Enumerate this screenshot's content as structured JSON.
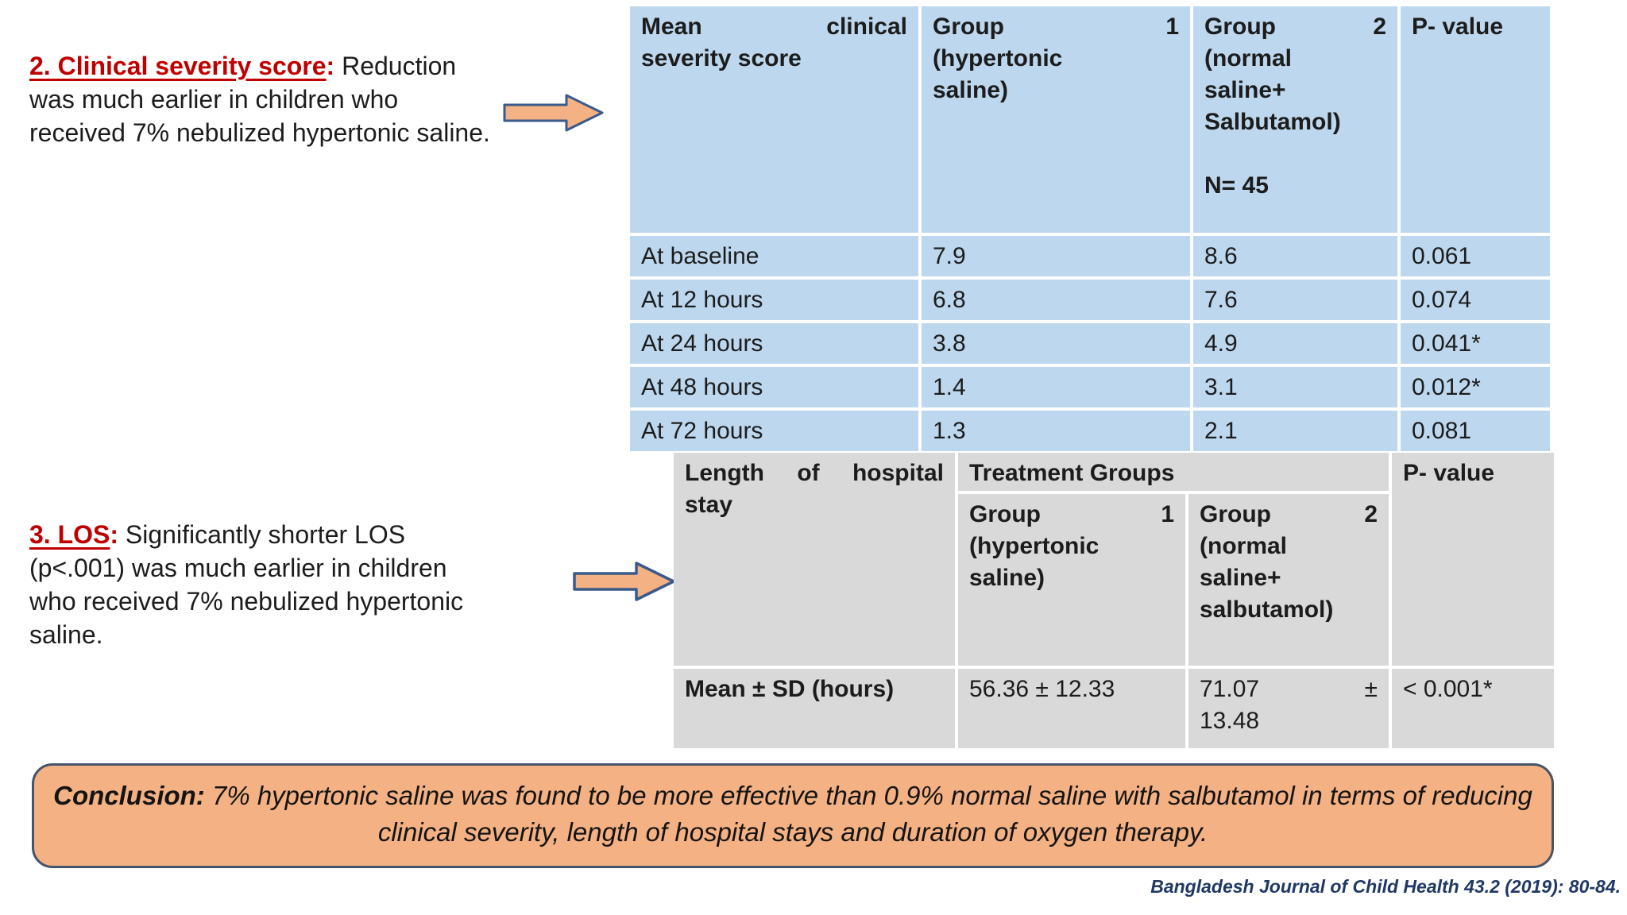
{
  "slide": {
    "point2": {
      "heading": "2. Clinical severity score",
      "colon": ":",
      "body": " Reduction was much earlier in children who received 7% nebulized hypertonic saline."
    },
    "point3": {
      "heading": "3. LOS",
      "colon": ":",
      "body": " Significantly shorter LOS (p<.001) was much earlier in children who received 7% nebulized hypertonic saline."
    },
    "conclusion": {
      "label": "Conclusion:",
      "text": " 7% hypertonic saline was found to be more effective than 0.9% normal saline with salbutamol in terms of reducing clinical severity, length of hospital stays and duration of oxygen therapy."
    },
    "citation": "Bangladesh Journal of Child Health 43.2 (2019): 80-84."
  },
  "severity_table": {
    "header": {
      "col1_lines": [
        "Mean\tclinical",
        "severity score"
      ],
      "col2_lines": [
        "Group\t1",
        "(hypertonic",
        "saline)"
      ],
      "col3_lines": [
        "Group\t2",
        "(normal",
        "saline+",
        "Salbutamol)",
        "",
        "N= 45"
      ],
      "col4": "P- value"
    },
    "rows": [
      {
        "label": "At baseline",
        "group1": "7.9",
        "group2": "8.6",
        "p": "0.061"
      },
      {
        "label": "At 12 hours",
        "group1": "6.8",
        "group2": "7.6",
        "p": "0.074"
      },
      {
        "label": "At 24 hours",
        "group1": "3.8",
        "group2": "4.9",
        "p": "0.041*"
      },
      {
        "label": "At 48 hours",
        "group1": "1.4",
        "group2": "3.1",
        "p": "0.012*"
      },
      {
        "label": "At 72 hours",
        "group1": "1.3",
        "group2": "2.1",
        "p": "0.081"
      }
    ]
  },
  "los_table": {
    "header": {
      "col1_lines": [
        "Length\tof\thospital",
        "stay"
      ],
      "treatment_groups": "Treatment Groups",
      "group1_lines": [
        "Group\t1",
        "(hypertonic",
        "saline)"
      ],
      "group2_lines": [
        "Group\t2",
        "(normal",
        "saline+",
        "salbutamol)"
      ],
      "pvalue": "P- value"
    },
    "row": {
      "label": "Mean ± SD (hours)",
      "group1": "56.36 ± 12.33",
      "group2_lines": [
        "71.07\t±",
        "13.48"
      ],
      "p": "< 0.001*"
    }
  },
  "colors": {
    "table1_fill": "#BDD7EE",
    "table2_fill": "#D9D9D9",
    "arrow_fill": "#F4B183",
    "arrow_outline": "#3A5A8C",
    "conclusion_fill": "#F4B183",
    "conclusion_border": "#44546A",
    "heading_red": "#C00000",
    "citation_navy": "#1F3864"
  }
}
